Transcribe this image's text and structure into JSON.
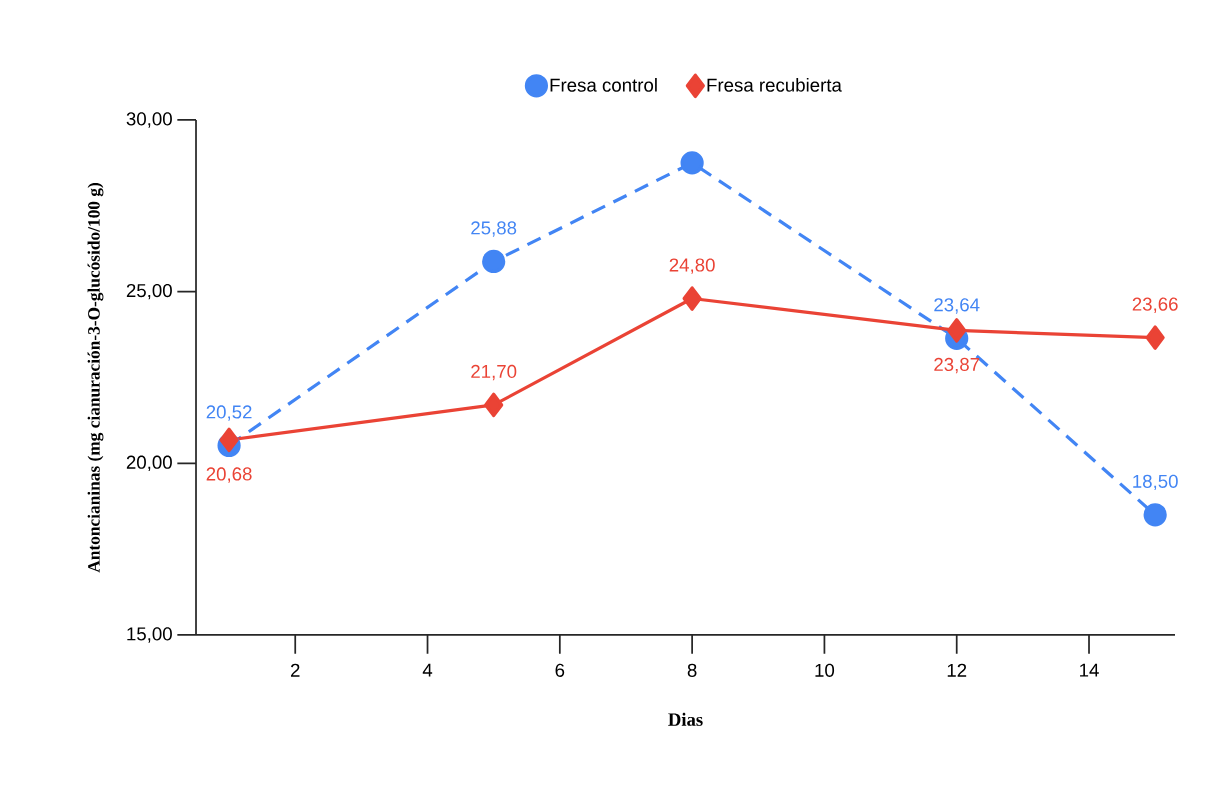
{
  "chart_data": {
    "type": "line",
    "xlabel": "Dias",
    "ylabel": "Antoncianinas (mg cianuración-3-O-glucósido/100 g)",
    "x": [
      1,
      5,
      8,
      12,
      15
    ],
    "series": [
      {
        "name": "Fresa control",
        "color": "#4285f4",
        "marker": "circle",
        "line_style": "dashed",
        "values": [
          20.52,
          25.88,
          28.75,
          23.64,
          18.5
        ],
        "value_labels": [
          "20,52",
          "25,88",
          null,
          "23,64",
          "18,50"
        ]
      },
      {
        "name": "Fresa recubierta",
        "color": "#ea4335",
        "marker": "diamond",
        "line_style": "solid",
        "values": [
          20.68,
          21.7,
          24.8,
          23.87,
          23.66
        ],
        "value_labels": [
          "20,68",
          "21,70",
          "24,80",
          "23,87",
          "23,66"
        ]
      }
    ],
    "xlim": [
      0.5,
      15.3
    ],
    "xticks": [
      2,
      4,
      6,
      8,
      10,
      12,
      14
    ],
    "ylim": [
      15,
      30
    ],
    "yticks": [
      {
        "value": 15,
        "label": "15,00"
      },
      {
        "value": 20,
        "label": "20,00"
      },
      {
        "value": 25,
        "label": "25,00"
      },
      {
        "value": 30,
        "label": "30,00"
      }
    ],
    "grid": false,
    "legend": "top"
  }
}
